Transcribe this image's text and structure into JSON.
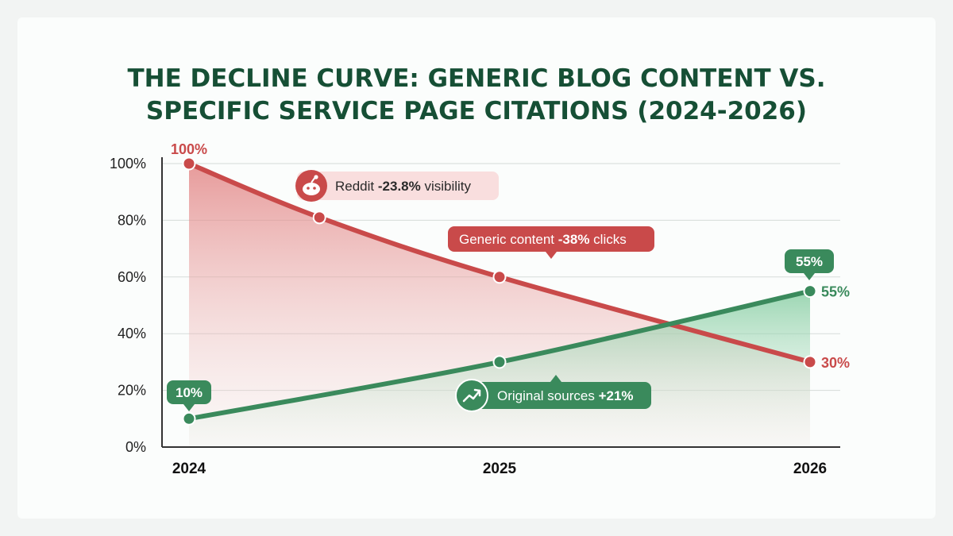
{
  "chart_data": {
    "type": "line",
    "title": "THE DECLINE CURVE: GENERIC BLOG CONTENT VS. SPECIFIC SERVICE PAGE CITATIONS (2024-2026)",
    "title_lines": [
      "THE DECLINE CURVE: GENERIC BLOG CONTENT VS.",
      "SPECIFIC SERVICE PAGE CITATIONS (2024-2026)"
    ],
    "xlabel": "",
    "ylabel": "",
    "x_ticks": [
      "2024",
      "2025",
      "2026"
    ],
    "x_range": [
      2024,
      2026
    ],
    "y_ticks": [
      "0%",
      "20%",
      "40%",
      "60%",
      "80%",
      "100%"
    ],
    "ylim": [
      0,
      100
    ],
    "grid": true,
    "series": [
      {
        "key": "generic",
        "color": "#c94a4a",
        "points": [
          {
            "x": 2024,
            "y": 100,
            "marker": true,
            "label": "100%"
          },
          {
            "x": 2024.42,
            "y": 81,
            "marker": true
          },
          {
            "x": 2025,
            "y": 60,
            "marker": true
          },
          {
            "x": 2026,
            "y": 30,
            "marker": true,
            "label": "30%"
          }
        ]
      },
      {
        "key": "original",
        "color": "#3a8a5c",
        "points": [
          {
            "x": 2024,
            "y": 10,
            "marker": true,
            "label": "10%"
          },
          {
            "x": 2025,
            "y": 30,
            "marker": true
          },
          {
            "x": 2026,
            "y": 55,
            "marker": true,
            "label": "55%"
          }
        ]
      }
    ],
    "annotations": [
      {
        "key": "reddit",
        "icon": "reddit-icon",
        "text_plain": "Reddit ",
        "text_bold": "-23.8%",
        "text_after": " visibility",
        "series": "generic"
      },
      {
        "key": "generic",
        "text_plain": "Generic content ",
        "text_bold": "-38%",
        "text_after": " clicks",
        "series": "generic"
      },
      {
        "key": "original",
        "icon": "trending-up-icon",
        "text_plain": "Original sources ",
        "text_bold": "+21%",
        "text_after": "",
        "series": "original"
      },
      {
        "key": "badge55",
        "text_plain": "",
        "text_bold": "55%",
        "text_after": "",
        "series": "original"
      },
      {
        "key": "badge10",
        "text_plain": "",
        "text_bold": "10%",
        "text_after": "",
        "series": "original"
      }
    ]
  }
}
